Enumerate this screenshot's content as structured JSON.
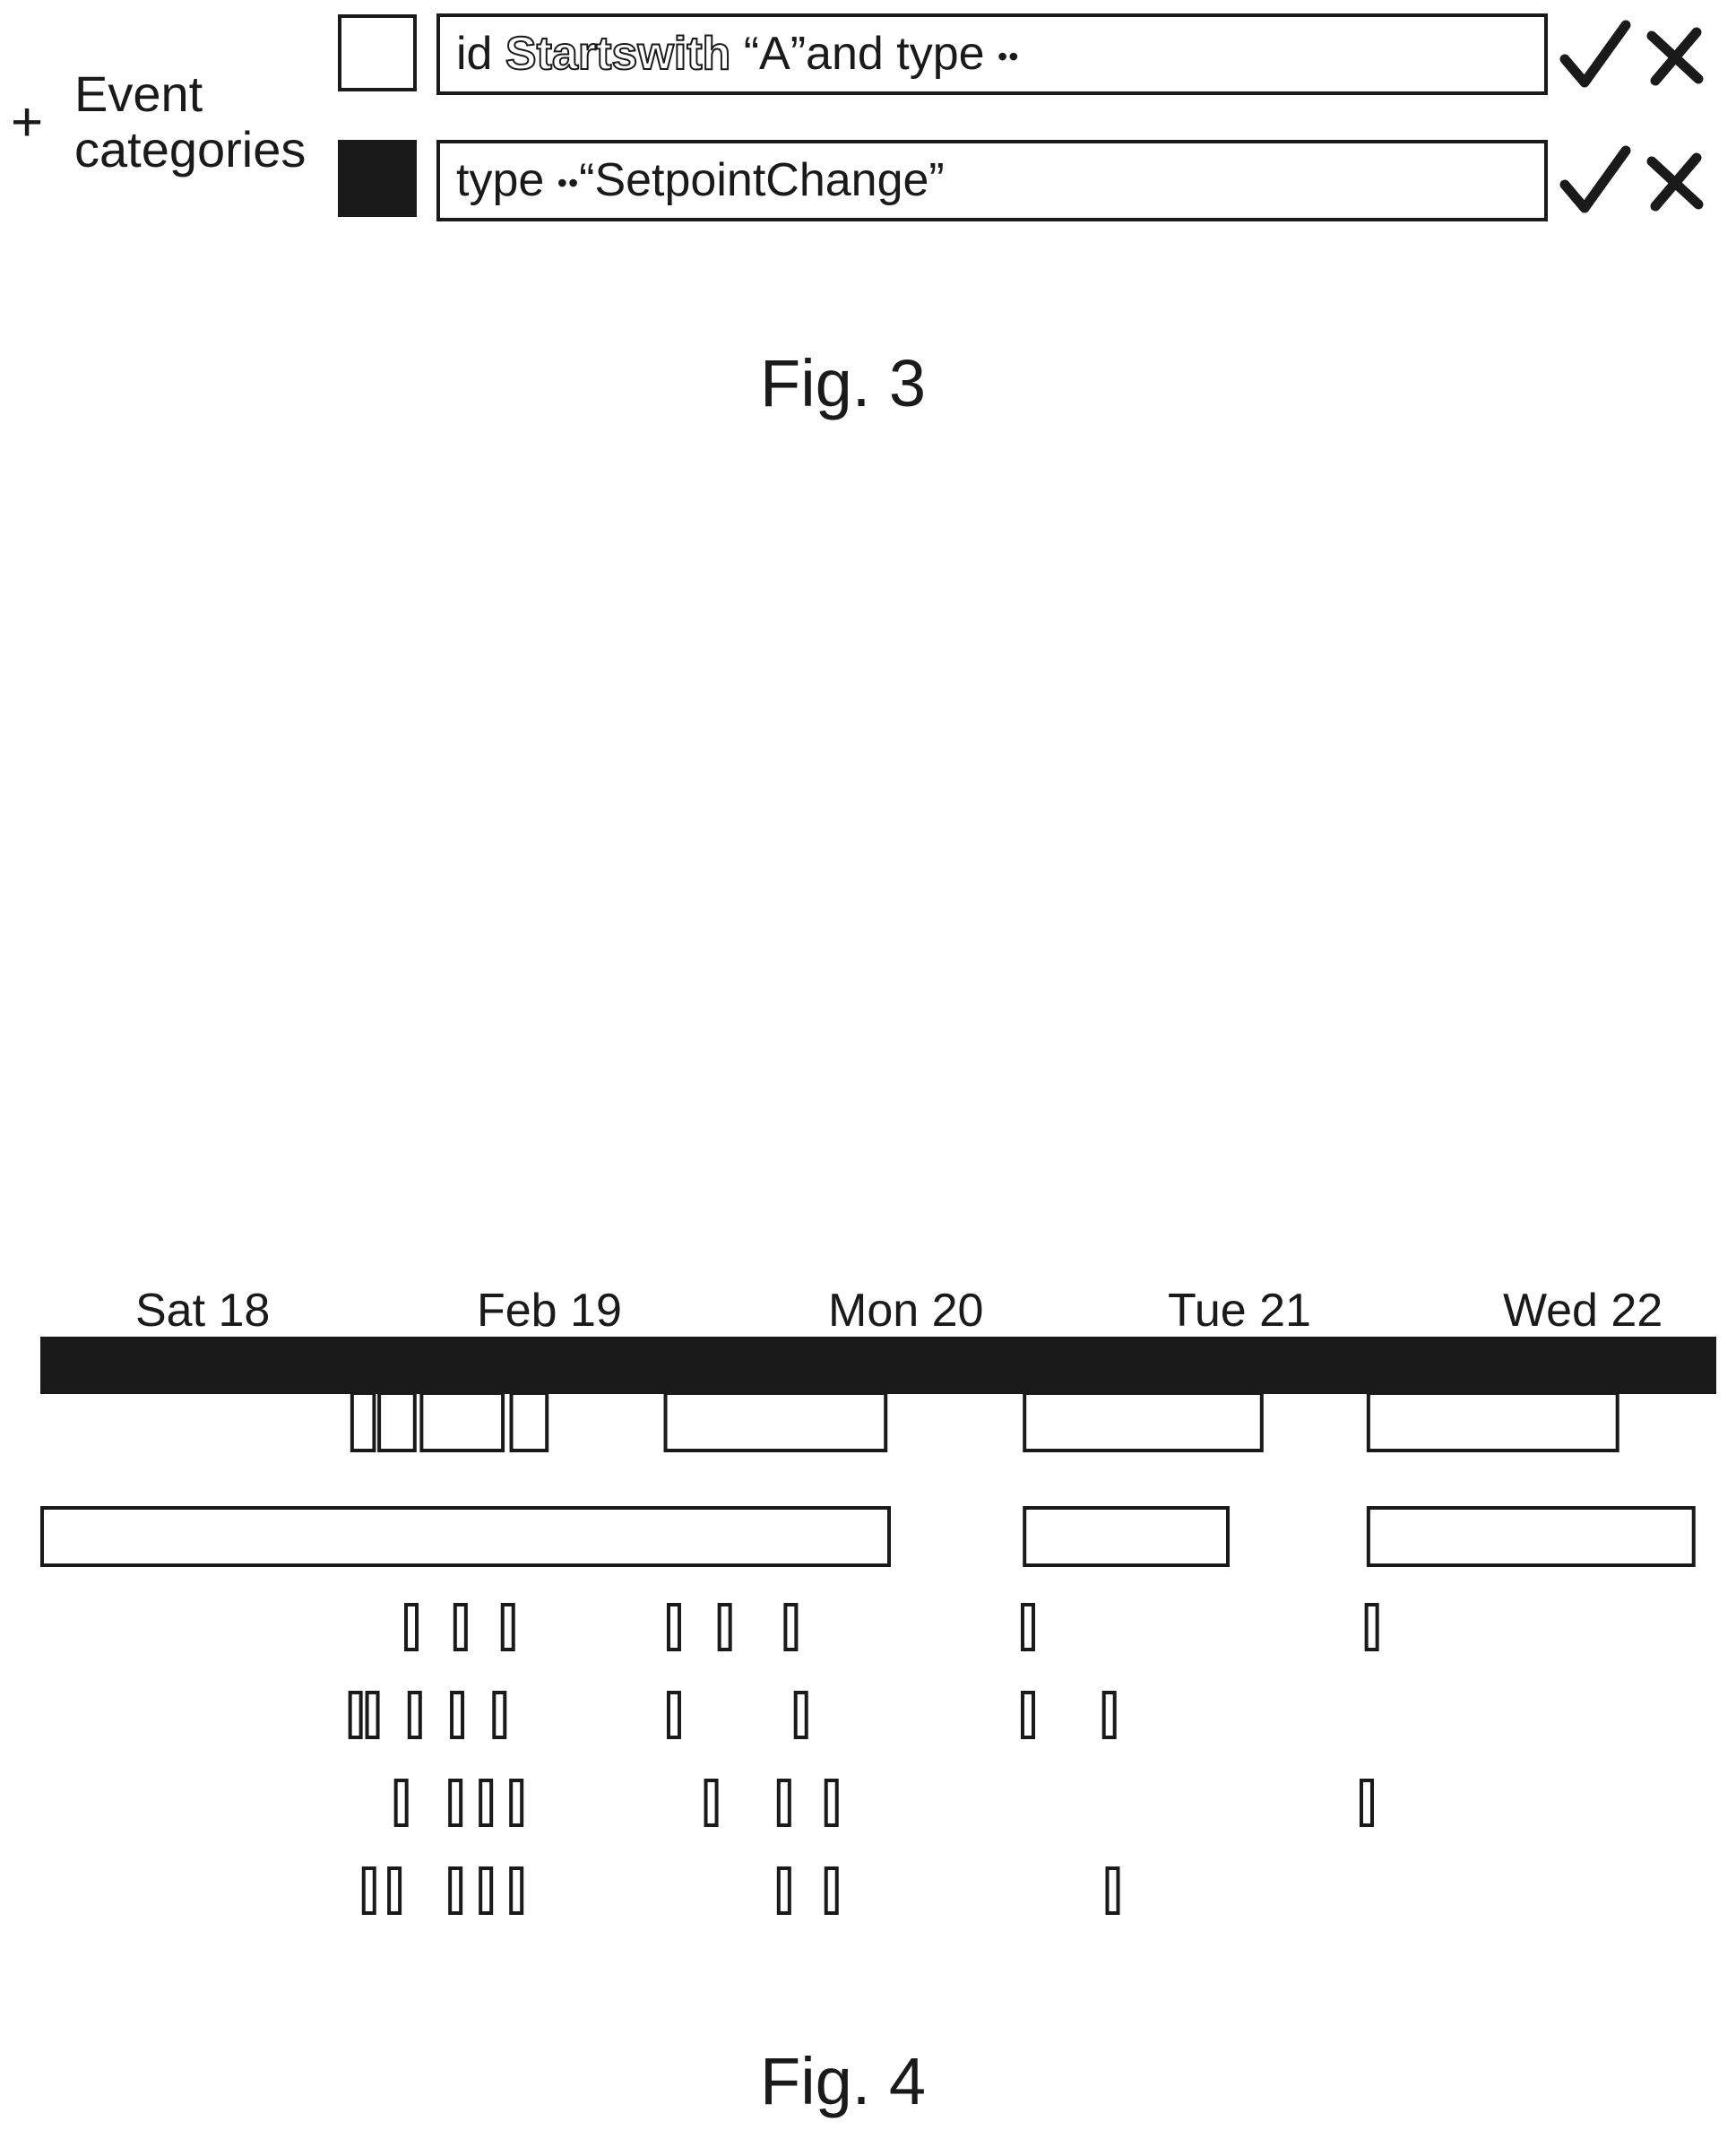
{
  "fig3": {
    "add_label": "+",
    "section_label_line1": "Event",
    "section_label_line2": "categories",
    "rules": [
      {
        "swatch_color": "#ffffff",
        "expr_part1": "id ",
        "expr_keyword": "Startswith",
        "expr_part2": " “A”and type ",
        "expr_op": "••",
        "expr_part3": ""
      },
      {
        "swatch_color": "#1a1a1a",
        "expr_part1": "type ",
        "expr_keyword": "",
        "expr_part2": "",
        "expr_op": "••",
        "expr_part3": "“SetpointChange”"
      }
    ],
    "confirm_icon": "check-icon",
    "delete_icon": "x-icon",
    "caption": "Fig. 3"
  },
  "fig4": {
    "day_labels": [
      "Sat 18",
      "Feb 19",
      "Mon 20",
      "Tue 21",
      "Wed 22"
    ],
    "caption": "Fig. 4",
    "chart_data": {
      "type": "timeline",
      "day_labels": [
        "Sat 18",
        "Feb 19",
        "Mon 20",
        "Tue 21",
        "Wed 22"
      ],
      "rows": [
        {
          "kind": "intervals",
          "style": "outline",
          "items": [
            [
              1.83,
              1.96
            ],
            [
              1.99,
              2.2
            ],
            [
              2.24,
              2.72
            ],
            [
              2.77,
              2.98
            ],
            [
              3.68,
              4.98
            ],
            [
              5.8,
              7.2
            ],
            [
              7.83,
              9.3
            ]
          ]
        },
        {
          "kind": "intervals",
          "style": "outline",
          "items": [
            [
              0,
              5.0
            ],
            [
              5.8,
              7.0
            ],
            [
              7.83,
              9.75
            ]
          ]
        },
        {
          "kind": "events",
          "items": [
            2.18,
            2.47,
            2.75,
            3.73,
            4.03,
            4.42,
            5.82,
            7.85
          ]
        },
        {
          "kind": "events",
          "items": [
            1.85,
            1.95,
            2.2,
            2.45,
            2.7,
            3.73,
            4.48,
            5.82,
            6.3
          ]
        },
        {
          "kind": "events",
          "items": [
            2.12,
            2.44,
            2.62,
            2.8,
            3.95,
            4.38,
            4.66,
            7.82
          ]
        },
        {
          "kind": "events",
          "items": [
            1.93,
            2.08,
            2.44,
            2.62,
            2.8,
            4.38,
            4.66,
            6.32
          ]
        }
      ]
    }
  }
}
